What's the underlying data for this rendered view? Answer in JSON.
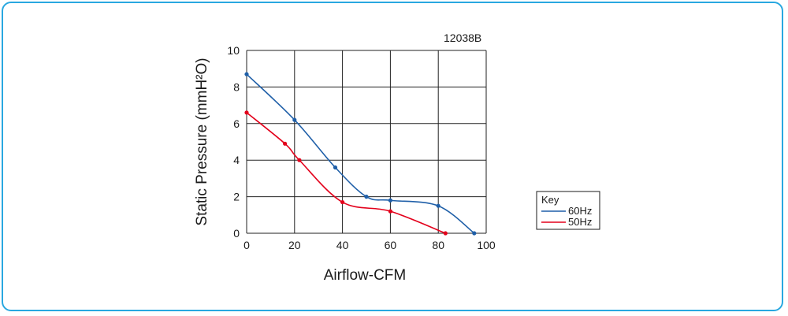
{
  "chart_data": {
    "type": "line",
    "model_label": "12038B",
    "xlabel": "Airflow-CFM",
    "ylabel": "Static Pressure (mmH²O)",
    "xlim": [
      0,
      100
    ],
    "ylim": [
      0,
      10
    ],
    "xticks": [
      0,
      20,
      40,
      60,
      80,
      100
    ],
    "yticks": [
      0,
      2,
      4,
      6,
      8,
      10
    ],
    "grid": true,
    "legend": {
      "title": "Key",
      "placement": "right"
    },
    "series": [
      {
        "name": "60Hz",
        "color": "#1f5fa8",
        "x": [
          0,
          20,
          37,
          50,
          60,
          80,
          95
        ],
        "y": [
          8.7,
          6.2,
          3.6,
          2.0,
          1.8,
          1.5,
          0.0
        ]
      },
      {
        "name": "50Hz",
        "color": "#e3001b",
        "x": [
          0,
          16,
          22,
          40,
          60,
          83
        ],
        "y": [
          6.6,
          4.9,
          4.0,
          1.7,
          1.2,
          0.0
        ]
      }
    ]
  }
}
